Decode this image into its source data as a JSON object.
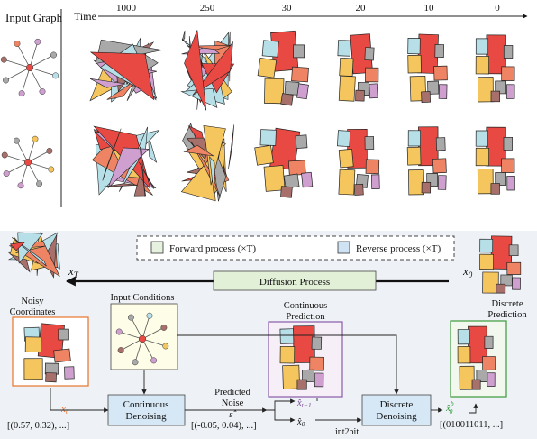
{
  "top": {
    "input_graph_label": "Input Graph",
    "time_label": "Time",
    "time_steps": [
      "1000",
      "250",
      "30",
      "20",
      "10",
      "0"
    ]
  },
  "legend": {
    "forward": "Forward process (×T)",
    "reverse": "Reverse process (×T)"
  },
  "diffusion": {
    "label": "Diffusion Process",
    "xT": "x",
    "xT_sub": "T",
    "x0": "x",
    "x0_sub": "0"
  },
  "labels": {
    "noisy_line1": "Noisy",
    "noisy_line2": "Coordinates",
    "input_conditions": "Input Conditions",
    "continuous_line1": "Continuous",
    "continuous_line2": "Prediction",
    "discrete_line1": "Discrete",
    "discrete_line2": "Prediction",
    "predicted_line1": "Predicted",
    "predicted_line2": "Noise",
    "int2bit": "int2bit"
  },
  "blocks": {
    "continuous_denoising_line1": "Continuous",
    "continuous_denoising_line2": "Denoising",
    "discrete_denoising_line1": "Discrete",
    "discrete_denoising_line2": "Denoising"
  },
  "math": {
    "xt": "x",
    "xt_sub": "t",
    "xt_values": "[(0.57, 0.32), ...]",
    "eps": "ε̂",
    "eps_values": "[(-0.05, 0.04), ...]",
    "xt1": "x̂",
    "xt1_sub": "t−1",
    "x0hat": "x̂",
    "x0hat_sub": "0",
    "x0b": "x̂",
    "x0b_sup": "b",
    "x0b_sub": "0",
    "x0b_values": "[(010011011, ...]"
  },
  "colors": {
    "orange": "#e8742a",
    "blue_text": "#1f3f9c",
    "green_text": "#2e9a3a",
    "red_room": "#e84a43",
    "pink_room": "#cf9fcf",
    "yellow_room": "#f6c65e",
    "salmon_room": "#ee8463",
    "gray_room": "#a9a9a9",
    "brown_room": "#a8706a",
    "cyan_room": "#b6dfe8",
    "bottom_panel_bg": "#eef1f5",
    "denoise_box": "#d6e8f6",
    "forward_fill": "#e6f2df",
    "reverse_fill": "#cfe3f4",
    "diffusion_fill": "#e3f0d8"
  }
}
